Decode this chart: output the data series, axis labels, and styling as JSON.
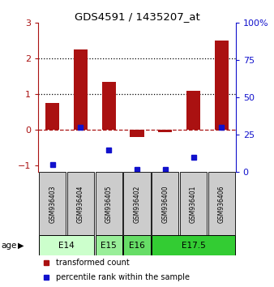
{
  "title": "GDS4591 / 1435207_at",
  "samples": [
    "GSM936403",
    "GSM936404",
    "GSM936405",
    "GSM936402",
    "GSM936400",
    "GSM936401",
    "GSM936406"
  ],
  "red_values": [
    0.75,
    2.25,
    1.35,
    -0.2,
    -0.08,
    1.1,
    2.5
  ],
  "blue_pct": [
    5,
    30,
    15,
    2,
    2,
    10,
    30
  ],
  "ylim_left": [
    -1.2,
    3.0
  ],
  "ylim_right": [
    0,
    100
  ],
  "yticks_left": [
    -1,
    0,
    1,
    2,
    3
  ],
  "yticks_right": [
    0,
    25,
    50,
    75,
    100
  ],
  "ytick_right_labels": [
    "0",
    "25",
    "50",
    "75",
    "100%"
  ],
  "dotted_lines": [
    1.0,
    2.0
  ],
  "dashed_zero": 0.0,
  "age_groups": [
    {
      "label": "E14",
      "start": 0,
      "end": 1,
      "color": "#ccffcc"
    },
    {
      "label": "E15",
      "start": 2,
      "end": 2,
      "color": "#99ee99"
    },
    {
      "label": "E16",
      "start": 3,
      "end": 3,
      "color": "#66dd66"
    },
    {
      "label": "E17.5",
      "start": 4,
      "end": 6,
      "color": "#33cc33"
    }
  ],
  "bar_color": "#aa1111",
  "dot_color": "#1111cc",
  "bg_color": "#ffffff",
  "legend_red": "transformed count",
  "legend_blue": "percentile rank within the sample",
  "age_label": "age"
}
